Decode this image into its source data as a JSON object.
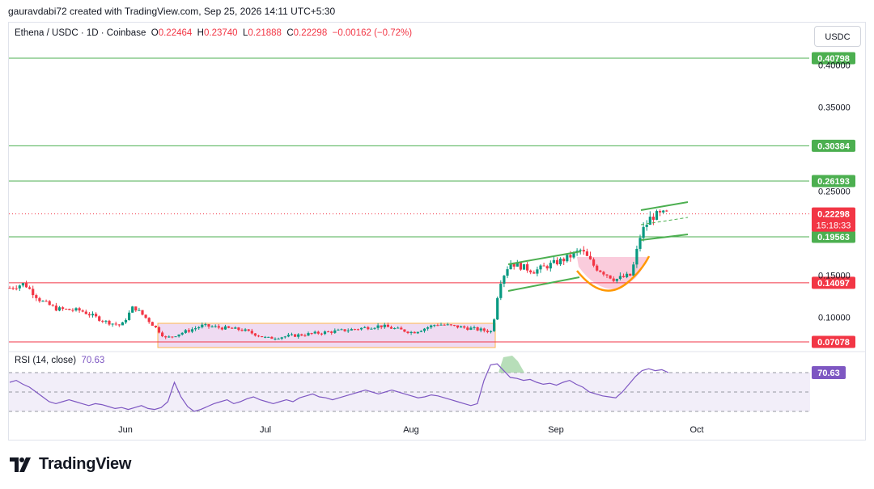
{
  "header": {
    "credit": "gauravdabi72 created with TradingView.com, Sep 25, 2026 14:11 UTC+5:30",
    "symbol": "Ethena / USDC · 1D · Coinbase",
    "open_label": "O",
    "open": "0.22464",
    "high_label": "H",
    "high": "0.23740",
    "low_label": "L",
    "low": "0.21888",
    "close_label": "C",
    "close": "0.22298",
    "change": "−0.00162 (−0.72%)",
    "currency": "USDC"
  },
  "rsi": {
    "label": "RSI (14, close)",
    "value": "70.63"
  },
  "brand": {
    "name": "TradingView"
  },
  "colors": {
    "up": "#089981",
    "down": "#f23645",
    "support": "#4caf50",
    "resistance_red": "#f23645",
    "rsi_line": "#7e57c2",
    "range_box": "#e1bee7",
    "cup": "#f8bbd0"
  },
  "chart_data": {
    "type": "candlestick",
    "pair": "Ethena / USDC",
    "timeframe": "1D",
    "exchange": "Coinbase",
    "price_ticks": [
      0.1,
      0.15,
      0.25,
      0.35,
      0.4
    ],
    "price_tick_labels": [
      "0.10000",
      "0.15000",
      "0.25000",
      "0.35000",
      "0.40000"
    ],
    "ylim": [
      0.062,
      0.425
    ],
    "time_ticks": [
      "Jun",
      "Jul",
      "Aug",
      "Sep",
      "Oct"
    ],
    "horizontal_levels": [
      {
        "value": 0.40798,
        "label": "0.40798",
        "color": "#4caf50"
      },
      {
        "value": 0.30384,
        "label": "0.30384",
        "color": "#4caf50"
      },
      {
        "value": 0.26193,
        "label": "0.26193",
        "color": "#4caf50"
      },
      {
        "value": 0.19563,
        "label": "0.19563",
        "color": "#4caf50"
      },
      {
        "value": 0.14097,
        "label": "0.14097",
        "color": "#f23645"
      },
      {
        "value": 0.07078,
        "label": "0.07078",
        "color": "#f23645"
      }
    ],
    "last_price": {
      "value": 0.22298,
      "label": "0.22298",
      "countdown": "15:18:33"
    },
    "rsi_series_approx": [
      60,
      62,
      58,
      55,
      50,
      45,
      40,
      38,
      40,
      42,
      40,
      38,
      36,
      38,
      37,
      35,
      33,
      34,
      32,
      34,
      36,
      33,
      32,
      34,
      40,
      60,
      45,
      35,
      30,
      32,
      35,
      38,
      40,
      42,
      38,
      40,
      43,
      45,
      42,
      40,
      38,
      40,
      42,
      40,
      44,
      46,
      48,
      45,
      44,
      42,
      44,
      46,
      48,
      50,
      52,
      50,
      48,
      50,
      52,
      50,
      48,
      46,
      44,
      45,
      47,
      46,
      44,
      42,
      40,
      38,
      36,
      38,
      62,
      78,
      79,
      72,
      65,
      64,
      62,
      63,
      60,
      58,
      59,
      57,
      60,
      62,
      58,
      55,
      50,
      48,
      46,
      45,
      44,
      50,
      58,
      66,
      72,
      74,
      72,
      73,
      70
    ]
  }
}
